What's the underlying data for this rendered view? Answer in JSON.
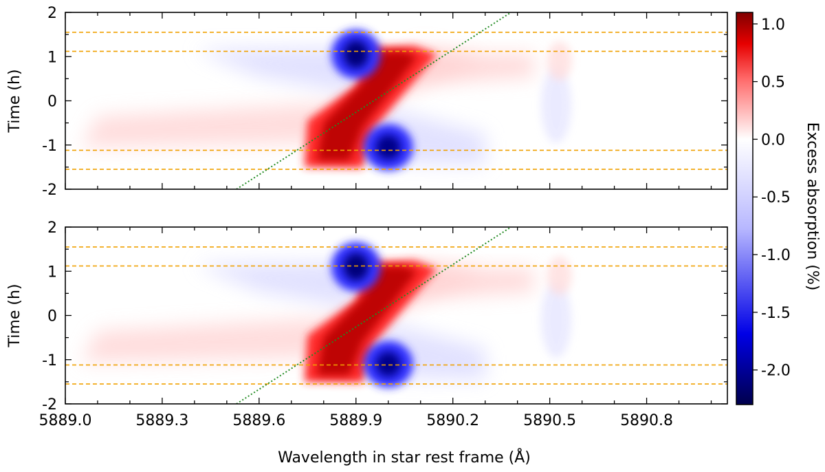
{
  "chart_data": {
    "type": "heatmap",
    "xlabel": "Wavelength in star rest frame (Å)",
    "xlim": [
      5889.0,
      5891.05
    ],
    "xticks": [
      "5889.0",
      "5889.3",
      "5889.6",
      "5889.9",
      "5890.2",
      "5890.5",
      "5890.8"
    ],
    "xtick_values": [
      5889.0,
      5889.3,
      5889.6,
      5889.9,
      5890.2,
      5890.5,
      5890.8
    ],
    "colorbar": {
      "label": "Excess absorption (%)",
      "range": [
        -2.3,
        1.1
      ],
      "ticks": [
        "1.0",
        "0.5",
        "0.0",
        "-0.5",
        "-1.0",
        "-1.5",
        "-2.0"
      ],
      "tick_values": [
        1.0,
        0.5,
        0.0,
        -0.5,
        -1.0,
        -1.5,
        -2.0
      ],
      "colormap": "seismic"
    },
    "panels": [
      {
        "ylabel": "Time (h)",
        "ylim": [
          -2,
          2
        ],
        "yticks": [
          "2",
          "1",
          "0",
          "-1",
          "-2"
        ],
        "ytick_values": [
          2,
          1,
          0,
          -1,
          -2
        ],
        "horizontal_lines": [
          1.55,
          1.12,
          -1.12,
          -1.55
        ],
        "horizontal_line_color": "#f0a000",
        "diagonal_line": {
          "from": [
            5889.53,
            -2.0
          ],
          "to": [
            5890.38,
            2.0
          ],
          "color": "#228b22"
        },
        "features": [
          {
            "label": "red band",
            "t_start": -1.5,
            "wl_start": 5889.82,
            "t_end": 1.2,
            "wl_end": 5890.02,
            "peak": 1.1
          },
          {
            "label": "blue lobe upper",
            "wl": 5889.9,
            "t": 1.05,
            "peak": -2.2
          },
          {
            "label": "blue lobe lower",
            "wl": 5890.0,
            "t": -1.05,
            "peak": -2.1
          }
        ]
      },
      {
        "ylabel": "Time (h)",
        "ylim": [
          -2,
          2
        ],
        "yticks": [
          "2",
          "1",
          "0",
          "-1",
          "-2"
        ],
        "ytick_values": [
          2,
          1,
          0,
          -1,
          -2
        ],
        "horizontal_lines": [
          1.55,
          1.12,
          -1.12,
          -1.55
        ],
        "horizontal_line_color": "#f0a000",
        "diagonal_line": {
          "from": [
            5889.53,
            -2.0
          ],
          "to": [
            5890.38,
            2.0
          ],
          "color": "#228b22"
        },
        "features": [
          {
            "label": "red band",
            "t_start": -1.5,
            "wl_start": 5889.82,
            "t_end": 1.2,
            "wl_end": 5890.02,
            "peak": 1.1
          },
          {
            "label": "blue lobe upper",
            "wl": 5889.9,
            "t": 1.1,
            "peak": -2.2
          },
          {
            "label": "blue lobe lower",
            "wl": 5890.0,
            "t": -1.1,
            "peak": -2.2
          }
        ]
      }
    ]
  }
}
